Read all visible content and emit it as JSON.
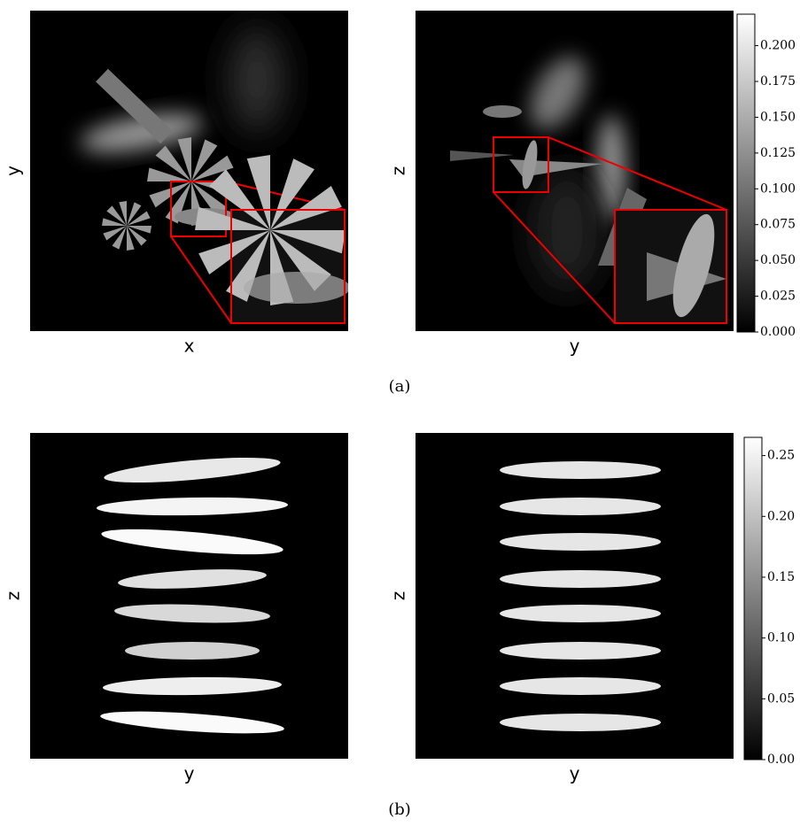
{
  "chart_data": [
    {
      "type": "image",
      "xlabel": "x",
      "ylabel": "y"
    },
    {
      "type": "image",
      "xlabel": "y",
      "ylabel": "z",
      "colorbar": true,
      "clim": [
        0,
        0.222
      ],
      "cticks": [
        {
          "value": 0,
          "label": "0.000"
        },
        {
          "value": 0.025,
          "label": "0.025"
        },
        {
          "value": 0.05,
          "label": "0.050"
        },
        {
          "value": 0.075,
          "label": "0.075"
        },
        {
          "value": 0.1,
          "label": "0.100"
        },
        {
          "value": 0.125,
          "label": "0.125"
        },
        {
          "value": 0.15,
          "label": "0.150"
        },
        {
          "value": 0.175,
          "label": "0.175"
        },
        {
          "value": 0.2,
          "label": "0.200"
        }
      ]
    },
    {
      "type": "image",
      "xlabel": "y",
      "ylabel": "z"
    },
    {
      "type": "image",
      "xlabel": "y",
      "ylabel": "z",
      "colorbar": true,
      "clim": [
        0,
        0.265
      ],
      "cticks": [
        {
          "value": 0,
          "label": "0.00"
        },
        {
          "value": 0.05,
          "label": "0.05"
        },
        {
          "value": 0.1,
          "label": "0.10"
        },
        {
          "value": 0.15,
          "label": "0.15"
        },
        {
          "value": 0.2,
          "label": "0.20"
        },
        {
          "value": 0.25,
          "label": "0.25"
        }
      ]
    }
  ],
  "captions": [
    "(a)",
    "(b)"
  ]
}
